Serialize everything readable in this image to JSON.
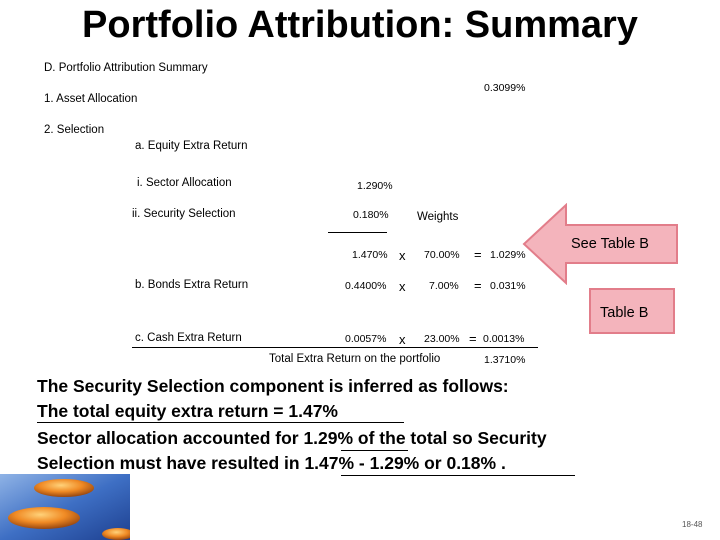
{
  "title": "Portfolio Attribution: Summary",
  "section_heading": "D. Portfolio Attribution Summary",
  "asset_allocation": {
    "label": "1. Asset Allocation",
    "value": "0.3099%"
  },
  "selection": {
    "label": "2. Selection",
    "equity_label": "a. Equity Extra Return",
    "sector_label": "i. Sector Allocation",
    "sector_value": "1.290%",
    "security_label": "ii. Security Selection",
    "security_value": "0.180%",
    "weights_label": "Weights",
    "equity_total": "1.470%",
    "equity_weight": "70.00%",
    "equity_result": "1.029%",
    "bonds_label": "b. Bonds Extra Return",
    "bonds_value": "0.4400%",
    "bonds_weight": "7.00%",
    "bonds_result": "0.031%",
    "cash_label": "c. Cash Extra Return",
    "cash_value": "0.0057%",
    "cash_weight": "23.00%",
    "cash_result": "0.0013%"
  },
  "operators": {
    "times": "x",
    "equals": "="
  },
  "total": {
    "label": "Total Extra Return on the portfolio",
    "value": "1.3710%"
  },
  "callouts": {
    "see_table": "See Table B",
    "table": "Table B"
  },
  "explanation": {
    "line1": "The Security Selection component is inferred as follows:",
    "line2": "The total equity extra return = 1.47%",
    "line3": "Sector allocation accounted for 1.29%  of the total so Security",
    "line4": "Selection must have resulted in 1.47% - 1.29% or 0.18%  ."
  },
  "page_number": "18-48",
  "colors": {
    "arrow_fill": "#f4b4bc",
    "arrow_stroke": "#e27d8a",
    "box_fill": "#f4b4bc"
  }
}
